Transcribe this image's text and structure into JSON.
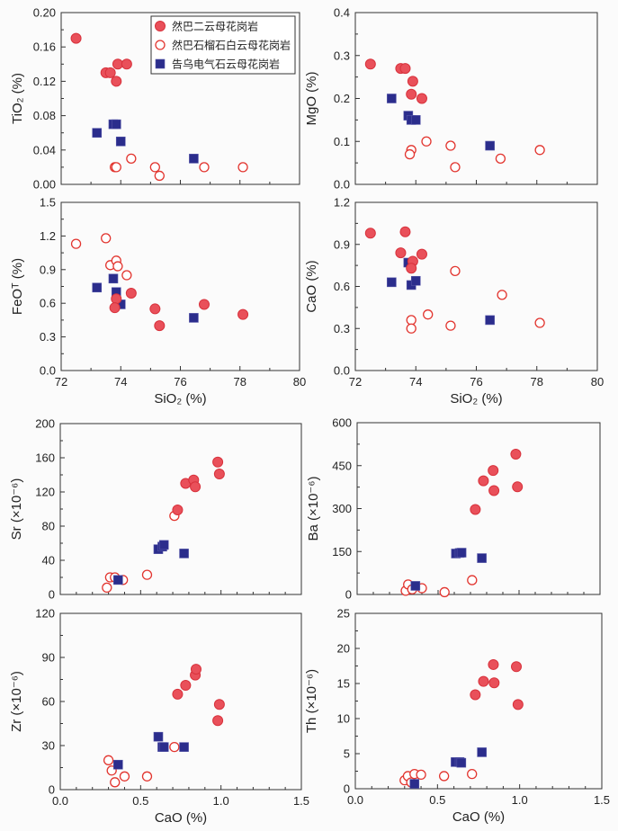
{
  "legend": [
    {
      "key": "filled",
      "label": "然巴二云母花岗岩"
    },
    {
      "key": "open",
      "label": "然巴石榴石白云母花岗岩"
    },
    {
      "key": "square",
      "label": "告乌电气石云母花岗岩"
    }
  ],
  "colors": {
    "filled_fill": "#e9505a",
    "filled_stroke": "#d8323c",
    "open_stroke": "#e2352f",
    "square_fill": "#2b2d8c",
    "axis": "#333333"
  },
  "chart_data": [
    {
      "id": "tio2",
      "type": "scatter",
      "xlabel": "",
      "ylabel": "TiO₂ (%)",
      "xlim": [
        72,
        80
      ],
      "ylim": [
        0,
        0.2
      ],
      "xticks": [
        72,
        74,
        76,
        78,
        80
      ],
      "show_xtick_labels": false,
      "yticks": [
        "0.00",
        "0.04",
        "0.08",
        "0.12",
        "0.16",
        "0.20"
      ],
      "legend": "top-right",
      "series": {
        "filled": [
          [
            72.5,
            0.17
          ],
          [
            73.5,
            0.13
          ],
          [
            73.65,
            0.13
          ],
          [
            73.9,
            0.14
          ],
          [
            74.2,
            0.14
          ],
          [
            73.85,
            0.12
          ]
        ],
        "open": [
          [
            73.8,
            0.02
          ],
          [
            73.85,
            0.02
          ],
          [
            74.35,
            0.03
          ],
          [
            75.15,
            0.02
          ],
          [
            75.3,
            0.01
          ],
          [
            76.8,
            0.02
          ],
          [
            78.1,
            0.02
          ]
        ],
        "square": [
          [
            73.2,
            0.06
          ],
          [
            73.75,
            0.07
          ],
          [
            73.85,
            0.07
          ],
          [
            74.0,
            0.05
          ],
          [
            76.45,
            0.03
          ]
        ]
      }
    },
    {
      "id": "mgo",
      "type": "scatter",
      "xlabel": "",
      "ylabel": "MgO (%)",
      "xlim": [
        72,
        80
      ],
      "ylim": [
        0,
        0.4
      ],
      "xticks": [
        72,
        74,
        76,
        78,
        80
      ],
      "show_xtick_labels": false,
      "yticks": [
        "0.0",
        "0.1",
        "0.2",
        "0.3",
        "0.4"
      ],
      "series": {
        "filled": [
          [
            72.5,
            0.28
          ],
          [
            73.5,
            0.27
          ],
          [
            73.65,
            0.27
          ],
          [
            73.9,
            0.24
          ],
          [
            73.85,
            0.21
          ],
          [
            74.2,
            0.2
          ]
        ],
        "open": [
          [
            74.35,
            0.1
          ],
          [
            75.15,
            0.09
          ],
          [
            73.85,
            0.08
          ],
          [
            73.8,
            0.07
          ],
          [
            75.3,
            0.04
          ],
          [
            76.8,
            0.06
          ],
          [
            78.1,
            0.08
          ]
        ],
        "square": [
          [
            73.2,
            0.2
          ],
          [
            73.75,
            0.16
          ],
          [
            73.85,
            0.15
          ],
          [
            74.0,
            0.15
          ],
          [
            76.45,
            0.09
          ]
        ]
      }
    },
    {
      "id": "feo",
      "type": "scatter",
      "xlabel": "SiO₂ (%)",
      "ylabel": "FeOᵀ (%)",
      "xlim": [
        72,
        80
      ],
      "ylim": [
        0,
        1.5
      ],
      "xticks": [
        72,
        74,
        76,
        78,
        80
      ],
      "show_xtick_labels": true,
      "yticks": [
        "0.0",
        "0.3",
        "0.6",
        "0.9",
        "1.2",
        "1.5"
      ],
      "series": {
        "open": [
          [
            72.5,
            1.13
          ],
          [
            73.5,
            1.18
          ],
          [
            73.65,
            0.94
          ],
          [
            73.85,
            0.98
          ],
          [
            73.9,
            0.93
          ],
          [
            74.2,
            0.85
          ]
        ],
        "filled": [
          [
            73.85,
            0.64
          ],
          [
            73.8,
            0.56
          ],
          [
            74.35,
            0.69
          ],
          [
            75.15,
            0.55
          ],
          [
            75.3,
            0.4
          ],
          [
            76.8,
            0.59
          ],
          [
            78.1,
            0.5
          ]
        ],
        "square": [
          [
            73.2,
            0.74
          ],
          [
            73.75,
            0.82
          ],
          [
            73.85,
            0.7
          ],
          [
            74.0,
            0.59
          ],
          [
            76.45,
            0.47
          ]
        ]
      }
    },
    {
      "id": "cao",
      "type": "scatter",
      "xlabel": "SiO₂ (%)",
      "ylabel": "CaO (%)",
      "xlim": [
        72,
        80
      ],
      "ylim": [
        0,
        1.2
      ],
      "xticks": [
        72,
        74,
        76,
        78,
        80
      ],
      "show_xtick_labels": true,
      "yticks": [
        "0.0",
        "0.3",
        "0.6",
        "0.9",
        "1.2"
      ],
      "series": {
        "filled": [
          [
            72.5,
            0.98
          ],
          [
            73.5,
            0.84
          ],
          [
            73.65,
            0.99
          ],
          [
            73.9,
            0.78
          ],
          [
            73.85,
            0.73
          ],
          [
            74.2,
            0.83
          ]
        ],
        "open": [
          [
            73.85,
            0.36
          ],
          [
            73.85,
            0.3
          ],
          [
            74.4,
            0.4
          ],
          [
            75.15,
            0.32
          ],
          [
            75.3,
            0.71
          ],
          [
            76.85,
            0.54
          ],
          [
            78.1,
            0.34
          ]
        ],
        "square": [
          [
            73.2,
            0.63
          ],
          [
            73.75,
            0.77
          ],
          [
            73.85,
            0.61
          ],
          [
            74.0,
            0.64
          ],
          [
            76.45,
            0.36
          ]
        ]
      }
    },
    {
      "id": "sr",
      "type": "scatter",
      "xlabel": "",
      "ylabel": "Sr (×10⁻⁶)",
      "xlim": [
        0,
        1.5
      ],
      "ylim": [
        0,
        200
      ],
      "xticks": [
        0,
        0.5,
        1.0,
        1.5
      ],
      "show_xtick_labels": false,
      "yticks": [
        "0",
        "40",
        "80",
        "120",
        "160",
        "200"
      ],
      "series": {
        "filled": [
          [
            0.73,
            99
          ],
          [
            0.78,
            130
          ],
          [
            0.83,
            134
          ],
          [
            0.84,
            126
          ],
          [
            0.98,
            155
          ],
          [
            0.99,
            141
          ]
        ],
        "open": [
          [
            0.29,
            8
          ],
          [
            0.31,
            20
          ],
          [
            0.34,
            20
          ],
          [
            0.39,
            17
          ],
          [
            0.54,
            23
          ],
          [
            0.71,
            92
          ]
        ],
        "square": [
          [
            0.36,
            17
          ],
          [
            0.61,
            53
          ],
          [
            0.635,
            56
          ],
          [
            0.645,
            58
          ],
          [
            0.77,
            48
          ]
        ]
      }
    },
    {
      "id": "ba",
      "type": "scatter",
      "xlabel": "",
      "ylabel": "Ba (×10⁻⁶)",
      "xlim": [
        0,
        1.5
      ],
      "ylim": [
        0,
        600
      ],
      "xticks": [
        0,
        0.5,
        1.0,
        1.5
      ],
      "show_xtick_labels": false,
      "yticks": [
        "0",
        "150",
        "300",
        "450",
        "600"
      ],
      "series": {
        "filled": [
          [
            0.73,
            297
          ],
          [
            0.78,
            397
          ],
          [
            0.84,
            433
          ],
          [
            0.845,
            363
          ],
          [
            0.98,
            490
          ],
          [
            0.99,
            376
          ]
        ],
        "open": [
          [
            0.3,
            13
          ],
          [
            0.315,
            35
          ],
          [
            0.34,
            18
          ],
          [
            0.4,
            22
          ],
          [
            0.54,
            8
          ],
          [
            0.71,
            50
          ]
        ],
        "square": [
          [
            0.36,
            30
          ],
          [
            0.61,
            143
          ],
          [
            0.633,
            145
          ],
          [
            0.645,
            146
          ],
          [
            0.77,
            127
          ]
        ]
      }
    },
    {
      "id": "zr",
      "type": "scatter",
      "xlabel": "CaO (%)",
      "ylabel": "Zr (×10⁻⁶)",
      "xlim": [
        0,
        1.5
      ],
      "ylim": [
        0,
        120
      ],
      "xticks": [
        "0.0",
        "0.5",
        "1.0",
        "1.5"
      ],
      "show_xtick_labels": true,
      "yticks": [
        "0",
        "30",
        "60",
        "90",
        "120"
      ],
      "series": {
        "filled": [
          [
            0.73,
            65
          ],
          [
            0.78,
            71
          ],
          [
            0.84,
            78
          ],
          [
            0.845,
            82
          ],
          [
            0.98,
            47
          ],
          [
            0.99,
            58
          ]
        ],
        "open": [
          [
            0.3,
            20
          ],
          [
            0.32,
            13
          ],
          [
            0.34,
            5
          ],
          [
            0.4,
            9
          ],
          [
            0.54,
            9
          ],
          [
            0.71,
            29
          ]
        ],
        "square": [
          [
            0.36,
            17
          ],
          [
            0.61,
            36
          ],
          [
            0.635,
            29
          ],
          [
            0.645,
            29
          ],
          [
            0.77,
            29
          ]
        ]
      }
    },
    {
      "id": "th",
      "type": "scatter",
      "xlabel": "CaO (%)",
      "ylabel": "Th (×10⁻⁶)",
      "xlim": [
        0,
        1.5
      ],
      "ylim": [
        0,
        25
      ],
      "xticks": [
        "0.0",
        "0.5",
        "1.0",
        "1.5"
      ],
      "show_xtick_labels": true,
      "yticks": [
        "0",
        "5",
        "10",
        "15",
        "20",
        "25"
      ],
      "series": {
        "filled": [
          [
            0.73,
            13.4
          ],
          [
            0.78,
            15.3
          ],
          [
            0.84,
            17.7
          ],
          [
            0.845,
            15.1
          ],
          [
            0.98,
            17.4
          ],
          [
            0.99,
            12.0
          ]
        ],
        "open": [
          [
            0.3,
            1.2
          ],
          [
            0.32,
            1.8
          ],
          [
            0.34,
            0.9
          ],
          [
            0.36,
            2.1
          ],
          [
            0.4,
            2.0
          ],
          [
            0.54,
            1.8
          ],
          [
            0.71,
            2.1
          ]
        ],
        "square": [
          [
            0.36,
            0.7
          ],
          [
            0.61,
            3.8
          ],
          [
            0.635,
            3.8
          ],
          [
            0.645,
            3.7
          ],
          [
            0.77,
            5.2
          ]
        ]
      }
    }
  ]
}
